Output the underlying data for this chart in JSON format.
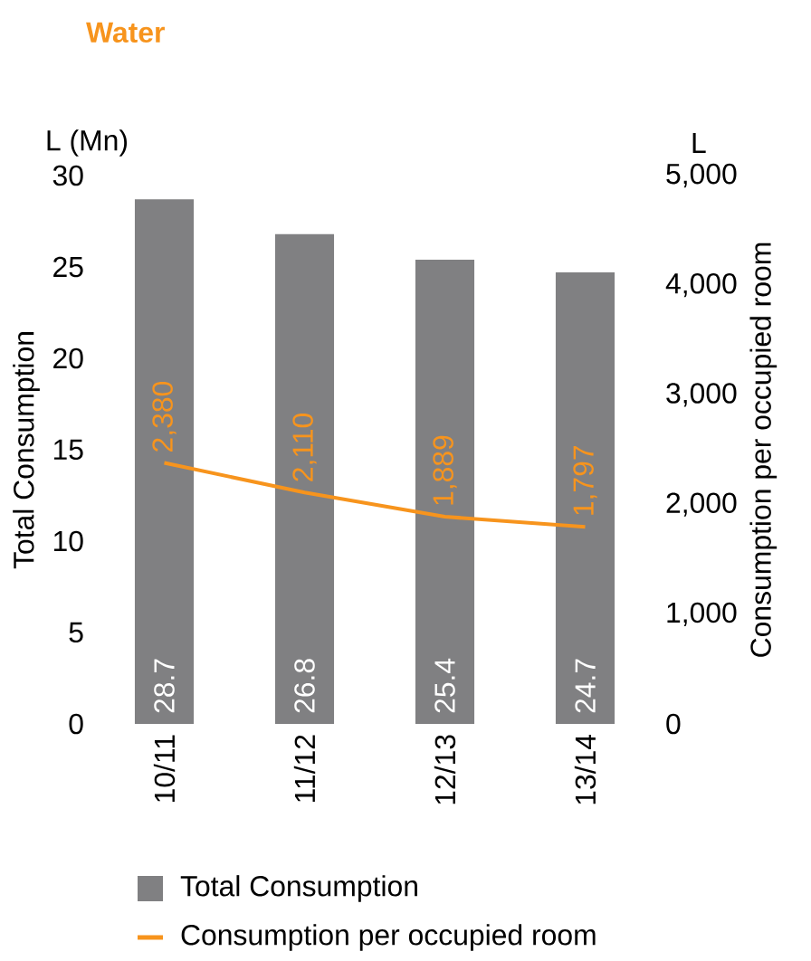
{
  "chart_data": {
    "type": "bar",
    "title": "Water",
    "ylabel": "Total Consumption",
    "y2label": "Consumption per occupied room",
    "annotations": [
      "L (Mn)",
      "L"
    ],
    "categories": [
      "10/11",
      "11/12",
      "12/13",
      "13/14"
    ],
    "series": [
      {
        "name": "Total Consumption",
        "color": "#808082",
        "values": [
          28.7,
          26.8,
          25.4,
          24.7
        ],
        "value_labels": [
          "28.7",
          "26.8",
          "25.4",
          "24.7"
        ]
      },
      {
        "name": "Consumption per occupied room",
        "type": "line",
        "axis": "y2",
        "color": "#f7941d",
        "values": [
          2380,
          2110,
          1889,
          1797
        ],
        "value_labels": [
          "2,380",
          "2,110",
          "1,889",
          "1,797"
        ]
      }
    ],
    "ylim": [
      0,
      30
    ],
    "yticks": [
      0,
      5,
      10,
      15,
      20,
      25,
      30
    ],
    "y2lim": [
      0,
      5000
    ],
    "y2ticks": [
      0,
      {
        "value": 1000,
        "label": "1,000"
      },
      {
        "value": 2000,
        "label": "2,000"
      },
      {
        "value": 3000,
        "label": "3,000"
      },
      {
        "value": 4000,
        "label": "4,000"
      },
      {
        "value": 5000,
        "label": "5,000"
      }
    ],
    "legend": "bottom",
    "marker": "none"
  }
}
